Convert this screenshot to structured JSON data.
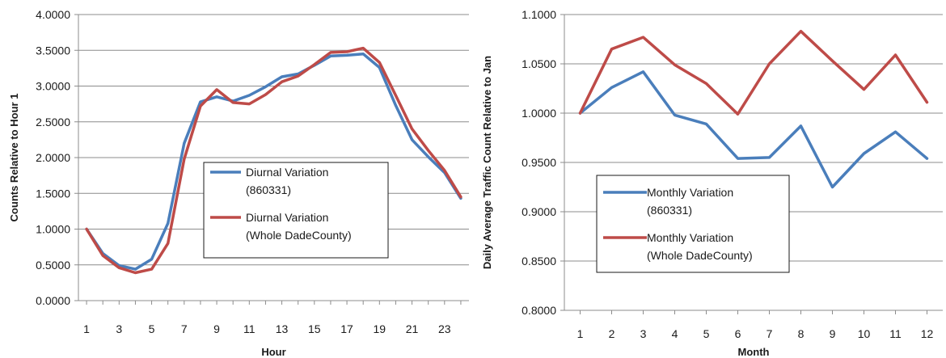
{
  "chart_data": [
    {
      "type": "line",
      "xlabel": "Hour",
      "ylabel": "Counts Relative to Hour 1",
      "x": [
        1,
        2,
        3,
        4,
        5,
        6,
        7,
        8,
        9,
        10,
        11,
        12,
        13,
        14,
        15,
        16,
        17,
        18,
        19,
        20,
        21,
        22,
        23,
        24
      ],
      "xtick_labels": [
        "1",
        "3",
        "5",
        "7",
        "9",
        "11",
        "13",
        "15",
        "17",
        "19",
        "21",
        "23"
      ],
      "xtick_values": [
        1,
        3,
        5,
        7,
        9,
        11,
        13,
        15,
        17,
        19,
        21,
        23
      ],
      "ylim": [
        0,
        4
      ],
      "yticks": [
        0,
        0.5,
        1,
        1.5,
        2,
        2.5,
        3,
        3.5,
        4
      ],
      "ytick_labels": [
        "0.0000",
        "0.5000",
        "1.0000",
        "1.5000",
        "2.0000",
        "2.5000",
        "3.0000",
        "3.5000",
        "4.0000"
      ],
      "grid": "horizontal",
      "legend_position": "center-right",
      "series": [
        {
          "name": "Diurnal Variation (860331)",
          "legend_lines": [
            "Diurnal Variation",
            "(860331)"
          ],
          "color": "#4a7ebb",
          "values": [
            1.0,
            0.66,
            0.49,
            0.44,
            0.58,
            1.08,
            2.2,
            2.78,
            2.85,
            2.79,
            2.87,
            2.99,
            3.13,
            3.17,
            3.29,
            3.42,
            3.43,
            3.45,
            3.26,
            2.73,
            2.25,
            2.01,
            1.79,
            1.43
          ]
        },
        {
          "name": "Diurnal Variation (Whole DadeCounty)",
          "legend_lines": [
            "Diurnal Variation",
            "(Whole DadeCounty)"
          ],
          "color": "#be4b48",
          "values": [
            1.0,
            0.63,
            0.46,
            0.39,
            0.44,
            0.8,
            1.98,
            2.72,
            2.95,
            2.77,
            2.75,
            2.88,
            3.06,
            3.14,
            3.3,
            3.47,
            3.48,
            3.53,
            3.33,
            2.87,
            2.4,
            2.1,
            1.82,
            1.45
          ]
        }
      ]
    },
    {
      "type": "line",
      "xlabel": "Month",
      "ylabel": "Daily Average Traffic Count Relative to Jan",
      "x": [
        1,
        2,
        3,
        4,
        5,
        6,
        7,
        8,
        9,
        10,
        11,
        12
      ],
      "xtick_labels": [
        "1",
        "2",
        "3",
        "4",
        "5",
        "6",
        "7",
        "8",
        "9",
        "10",
        "11",
        "12"
      ],
      "xtick_values": [
        1,
        2,
        3,
        4,
        5,
        6,
        7,
        8,
        9,
        10,
        11,
        12
      ],
      "ylim": [
        0.8,
        1.1
      ],
      "yticks": [
        0.8,
        0.85,
        0.9,
        0.95,
        1.0,
        1.05,
        1.1
      ],
      "ytick_labels": [
        "0.8000",
        "0.8500",
        "0.9000",
        "0.9500",
        "1.0000",
        "1.0500",
        "1.1000"
      ],
      "grid": "horizontal",
      "legend_position": "bottom-left",
      "series": [
        {
          "name": "Monthly Variation (860331)",
          "legend_lines": [
            "Monthly Variation",
            "(860331)"
          ],
          "color": "#4a7ebb",
          "values": [
            1.0,
            1.026,
            1.042,
            0.998,
            0.989,
            0.954,
            0.955,
            0.987,
            0.925,
            0.959,
            0.981,
            0.954
          ]
        },
        {
          "name": "Monthly Variation (Whole DadeCounty)",
          "legend_lines": [
            "Monthly Variation",
            "(Whole DadeCounty)"
          ],
          "color": "#be4b48",
          "values": [
            1.0,
            1.065,
            1.077,
            1.049,
            1.03,
            0.999,
            1.05,
            1.083,
            1.053,
            1.024,
            1.059,
            1.011
          ]
        }
      ]
    }
  ]
}
